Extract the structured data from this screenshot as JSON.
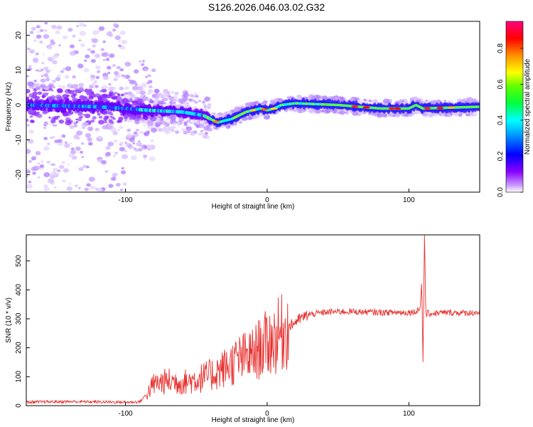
{
  "title": "S126.2026.046.03.02.G32",
  "chart_data": [
    {
      "type": "heatmap",
      "title": "S126.2026.046.03.02.G32",
      "xlabel": "Height of straight line (km)",
      "ylabel": "Frequency (Hz)",
      "xlim": [
        -170,
        150
      ],
      "ylim": [
        -25,
        24
      ],
      "xticks": [
        -100,
        0,
        100
      ],
      "xtick_labels": [
        "-100",
        "0",
        "100"
      ],
      "yticks": [
        20,
        10,
        0,
        -10,
        -20
      ],
      "ytick_labels": [
        "20",
        "10",
        "0",
        "-10",
        "-20"
      ],
      "ridge": {
        "description": "dominant frequency track of the spectral ridge (Hz)",
        "x": [
          -170,
          -120,
          -100,
          -85,
          -60,
          -45,
          -35,
          -25,
          -15,
          -5,
          0,
          5,
          10,
          20,
          50,
          80,
          100,
          105,
          110,
          150
        ],
        "y": [
          0,
          -0.5,
          -1,
          -1.5,
          -2,
          -3,
          -5,
          -4,
          -2,
          -1,
          -1.5,
          -1,
          0,
          0.5,
          0,
          -1,
          -1,
          0,
          -1,
          -0.5
        ]
      },
      "colorbar": {
        "label": "Normalized spectral amplitude",
        "range": [
          0,
          0.95
        ],
        "ticks": [
          0.0,
          0.2,
          0.4,
          0.6,
          0.8
        ],
        "tick_labels": [
          "0.0",
          "0.2",
          "0.4",
          "0.6",
          "0.8"
        ],
        "colors": [
          "#ffffff",
          "#8a00ff",
          "#0000ff",
          "#00ffff",
          "#00ff00",
          "#ffff00",
          "#ff8000",
          "#ff0000",
          "#ff0080"
        ]
      }
    },
    {
      "type": "line",
      "xlabel": "Height of straight line (km)",
      "ylabel": "SNR (10 * v/v)",
      "xlim": [
        -170,
        150
      ],
      "ylim": [
        0,
        590
      ],
      "xticks": [
        -100,
        0,
        100
      ],
      "xtick_labels": [
        "-100",
        "0",
        "100"
      ],
      "yticks": [
        0,
        100,
        200,
        300,
        400,
        500
      ],
      "ytick_labels": [
        "0",
        "100",
        "200",
        "300",
        "400",
        "500"
      ],
      "series": [
        {
          "name": "SNR",
          "color": "#e8312f",
          "x": [
            -170,
            -140,
            -100,
            -90,
            -85,
            -80,
            -70,
            -60,
            -50,
            -40,
            -30,
            -20,
            -10,
            -5,
            0,
            5,
            10,
            15,
            20,
            25,
            30,
            40,
            50,
            60,
            70,
            80,
            90,
            100,
            105,
            108,
            109,
            110,
            111,
            112,
            115,
            120,
            130,
            140,
            150
          ],
          "y": [
            12,
            14,
            12,
            13,
            40,
            75,
            85,
            80,
            90,
            105,
            130,
            160,
            175,
            200,
            215,
            230,
            250,
            270,
            290,
            305,
            315,
            322,
            325,
            325,
            323,
            322,
            322,
            322,
            325,
            340,
            430,
            150,
            590,
            320,
            318,
            320,
            322,
            320,
            322
          ]
        }
      ]
    }
  ]
}
